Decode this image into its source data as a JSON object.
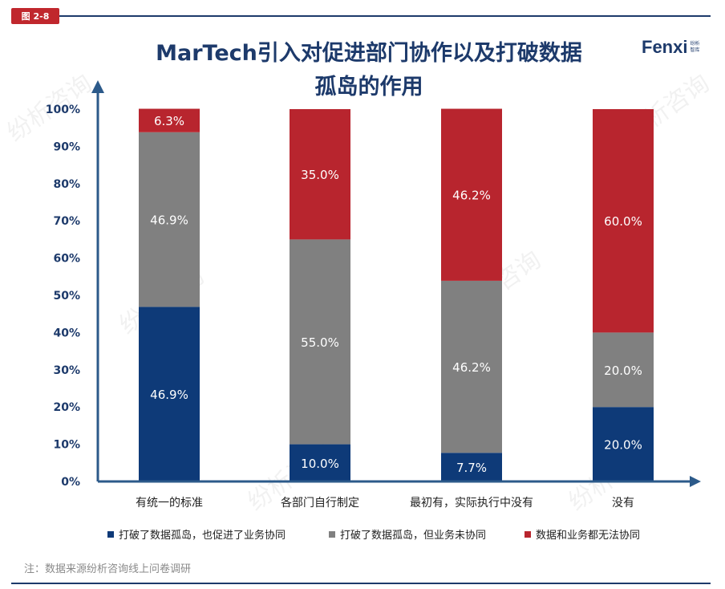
{
  "figure_label": "图 2-8",
  "title_line1": "MarTech引入对促进部门协作以及打破数据",
  "title_line2": "孤岛的作用",
  "logo": {
    "brand": "Fenxi",
    "sub": "纷析智库"
  },
  "watermark": "纷析咨询",
  "note": "注：数据来源纷析咨询线上问卷调研",
  "colors": {
    "series1": "#0e3a78",
    "series2": "#808080",
    "series3": "#b8252e",
    "axis": "#2c5a8a"
  },
  "chart_data": {
    "type": "bar",
    "stacked": true,
    "categories": [
      "有统一的标准",
      "各部门自行制定",
      "最初有，实际执行中没有",
      "没有"
    ],
    "series": [
      {
        "name": "打破了数据孤岛，也促进了业务协同",
        "values": [
          46.9,
          10.0,
          7.7,
          20.0
        ],
        "labels": [
          "46.9%",
          "10.0%",
          "7.7%",
          "20.0%"
        ]
      },
      {
        "name": "打破了数据孤岛，但业务未协同",
        "values": [
          46.9,
          55.0,
          46.2,
          20.0
        ],
        "labels": [
          "46.9%",
          "55.0%",
          "46.2%",
          "20.0%"
        ]
      },
      {
        "name": "数据和业务都无法协同",
        "values": [
          6.3,
          35.0,
          46.2,
          60.0
        ],
        "labels": [
          "6.3%",
          "35.0%",
          "46.2%",
          "60.0%"
        ]
      }
    ],
    "yticks": [
      "0%",
      "10%",
      "20%",
      "30%",
      "40%",
      "50%",
      "60%",
      "70%",
      "80%",
      "90%",
      "100%"
    ],
    "ylim": [
      0,
      100
    ],
    "legend_position": "bottom",
    "grid": false
  }
}
